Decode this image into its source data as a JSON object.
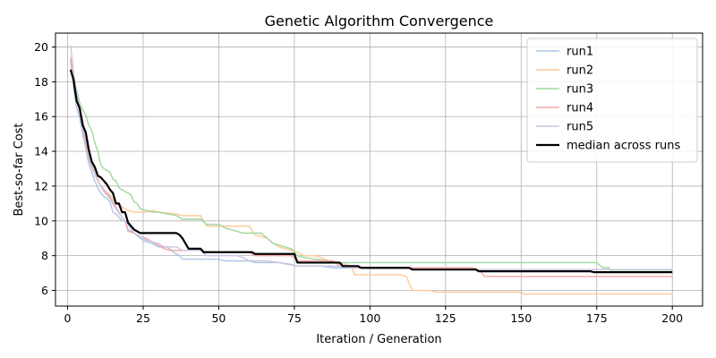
{
  "chart_data": {
    "type": "line",
    "title": "Genetic Algorithm Convergence",
    "xlabel": "Iteration / Generation",
    "ylabel": "Best-so-far Cost",
    "xlim": [
      -4,
      210
    ],
    "ylim": [
      5.1,
      20.8
    ],
    "xticks": [
      0,
      25,
      50,
      75,
      100,
      125,
      150,
      175,
      200
    ],
    "yticks": [
      6,
      8,
      10,
      12,
      14,
      16,
      18,
      20
    ],
    "grid": true,
    "legend_position": "top-right",
    "series": [
      {
        "name": "run1",
        "color": "#aac6e4",
        "width": 1.4,
        "points": [
          [
            1,
            19.4
          ],
          [
            2,
            17.6
          ],
          [
            3,
            16.5
          ],
          [
            4,
            15.9
          ],
          [
            5,
            15.0
          ],
          [
            6,
            14.2
          ],
          [
            7,
            13.3
          ],
          [
            8,
            12.8
          ],
          [
            9,
            12.3
          ],
          [
            10,
            11.9
          ],
          [
            11,
            11.6
          ],
          [
            12,
            11.4
          ],
          [
            13,
            11.3
          ],
          [
            14,
            11.1
          ],
          [
            15,
            10.5
          ],
          [
            16,
            10.4
          ],
          [
            17,
            10.2
          ],
          [
            18,
            10.0
          ],
          [
            19,
            10.0
          ],
          [
            20,
            9.5
          ],
          [
            22,
            9.3
          ],
          [
            24,
            9.0
          ],
          [
            26,
            8.8
          ],
          [
            28,
            8.7
          ],
          [
            30,
            8.5
          ],
          [
            33,
            8.5
          ],
          [
            35,
            8.2
          ],
          [
            37,
            8.0
          ],
          [
            38,
            7.8
          ],
          [
            45,
            7.8
          ],
          [
            50,
            7.8
          ],
          [
            52,
            7.7
          ],
          [
            60,
            7.7
          ],
          [
            62,
            7.6
          ],
          [
            70,
            7.6
          ],
          [
            73,
            7.5
          ],
          [
            76,
            7.4
          ],
          [
            80,
            7.4
          ],
          [
            84,
            7.4
          ],
          [
            88,
            7.3
          ],
          [
            96,
            7.3
          ],
          [
            112,
            7.3
          ],
          [
            115,
            7.2
          ],
          [
            150,
            7.2
          ],
          [
            200,
            7.2
          ]
        ]
      },
      {
        "name": "run2",
        "color": "#ffc896",
        "width": 1.4,
        "points": [
          [
            1,
            19.0
          ],
          [
            2,
            18.0
          ],
          [
            3,
            17.0
          ],
          [
            4,
            16.4
          ],
          [
            5,
            15.8
          ],
          [
            6,
            15.0
          ],
          [
            7,
            14.0
          ],
          [
            8,
            13.3
          ],
          [
            9,
            12.8
          ],
          [
            10,
            12.4
          ],
          [
            11,
            12.0
          ],
          [
            12,
            11.8
          ],
          [
            14,
            11.5
          ],
          [
            16,
            11.0
          ],
          [
            18,
            10.8
          ],
          [
            20,
            10.6
          ],
          [
            22,
            10.5
          ],
          [
            25,
            10.5
          ],
          [
            28,
            10.6
          ],
          [
            30,
            10.5
          ],
          [
            36,
            10.4
          ],
          [
            38,
            10.3
          ],
          [
            44,
            10.3
          ],
          [
            46,
            9.7
          ],
          [
            52,
            9.7
          ],
          [
            60,
            9.7
          ],
          [
            62,
            9.2
          ],
          [
            66,
            9.0
          ],
          [
            68,
            8.7
          ],
          [
            70,
            8.5
          ],
          [
            74,
            8.3
          ],
          [
            76,
            8.2
          ],
          [
            78,
            8.0
          ],
          [
            82,
            8.0
          ],
          [
            85,
            7.8
          ],
          [
            88,
            7.6
          ],
          [
            92,
            7.5
          ],
          [
            94,
            7.3
          ],
          [
            95,
            6.9
          ],
          [
            110,
            6.9
          ],
          [
            112,
            6.8
          ],
          [
            113,
            6.4
          ],
          [
            114,
            6.0
          ],
          [
            120,
            6.0
          ],
          [
            122,
            5.9
          ],
          [
            150,
            5.9
          ],
          [
            151,
            5.8
          ],
          [
            200,
            5.8
          ]
        ]
      },
      {
        "name": "run3",
        "color": "#9fd79f",
        "width": 1.4,
        "points": [
          [
            1,
            19.2
          ],
          [
            2,
            18.0
          ],
          [
            3,
            17.5
          ],
          [
            4,
            16.8
          ],
          [
            5,
            16.4
          ],
          [
            6,
            16.1
          ],
          [
            7,
            15.5
          ],
          [
            8,
            15.2
          ],
          [
            9,
            14.5
          ],
          [
            10,
            14.0
          ],
          [
            11,
            13.2
          ],
          [
            12,
            13.0
          ],
          [
            13,
            12.9
          ],
          [
            14,
            12.8
          ],
          [
            15,
            12.4
          ],
          [
            16,
            12.3
          ],
          [
            17,
            11.9
          ],
          [
            18,
            11.8
          ],
          [
            20,
            11.6
          ],
          [
            21,
            11.5
          ],
          [
            22,
            11.1
          ],
          [
            23,
            11.0
          ],
          [
            24,
            10.7
          ],
          [
            26,
            10.6
          ],
          [
            28,
            10.5
          ],
          [
            30,
            10.5
          ],
          [
            36,
            10.3
          ],
          [
            38,
            10.1
          ],
          [
            44,
            10.1
          ],
          [
            46,
            9.8
          ],
          [
            50,
            9.8
          ],
          [
            52,
            9.6
          ],
          [
            56,
            9.4
          ],
          [
            58,
            9.3
          ],
          [
            64,
            9.3
          ],
          [
            66,
            9.0
          ],
          [
            68,
            8.7
          ],
          [
            70,
            8.6
          ],
          [
            72,
            8.5
          ],
          [
            74,
            8.4
          ],
          [
            76,
            8.0
          ],
          [
            78,
            7.9
          ],
          [
            82,
            7.8
          ],
          [
            86,
            7.7
          ],
          [
            88,
            7.6
          ],
          [
            175,
            7.6
          ],
          [
            177,
            7.3
          ],
          [
            179,
            7.3
          ],
          [
            180,
            7.1
          ],
          [
            200,
            7.1
          ]
        ]
      },
      {
        "name": "run4",
        "color": "#f4a6a6",
        "width": 1.4,
        "points": [
          [
            1,
            19.3
          ],
          [
            2,
            17.8
          ],
          [
            3,
            17.0
          ],
          [
            4,
            16.2
          ],
          [
            5,
            15.4
          ],
          [
            6,
            14.5
          ],
          [
            7,
            13.6
          ],
          [
            8,
            13.1
          ],
          [
            9,
            12.7
          ],
          [
            10,
            12.3
          ],
          [
            12,
            11.7
          ],
          [
            14,
            11.3
          ],
          [
            16,
            10.7
          ],
          [
            18,
            10.2
          ],
          [
            19,
            10.0
          ],
          [
            20,
            9.4
          ],
          [
            22,
            9.3
          ],
          [
            24,
            9.1
          ],
          [
            26,
            9.0
          ],
          [
            28,
            8.8
          ],
          [
            30,
            8.6
          ],
          [
            32,
            8.4
          ],
          [
            34,
            8.3
          ],
          [
            44,
            8.3
          ],
          [
            46,
            8.2
          ],
          [
            58,
            8.2
          ],
          [
            60,
            8.2
          ],
          [
            62,
            8.0
          ],
          [
            74,
            8.0
          ],
          [
            76,
            7.7
          ],
          [
            88,
            7.7
          ],
          [
            90,
            7.4
          ],
          [
            96,
            7.4
          ],
          [
            98,
            7.3
          ],
          [
            134,
            7.3
          ],
          [
            136,
            7.2
          ],
          [
            137,
            7.0
          ],
          [
            138,
            6.8
          ],
          [
            200,
            6.8
          ]
        ]
      },
      {
        "name": "run5",
        "color": "#cbc3e3",
        "width": 1.4,
        "points": [
          [
            1,
            20.1
          ],
          [
            2,
            18.5
          ],
          [
            3,
            17.3
          ],
          [
            4,
            16.5
          ],
          [
            5,
            15.7
          ],
          [
            6,
            14.8
          ],
          [
            7,
            13.8
          ],
          [
            8,
            13.2
          ],
          [
            9,
            12.7
          ],
          [
            10,
            12.3
          ],
          [
            12,
            11.8
          ],
          [
            14,
            11.4
          ],
          [
            16,
            10.8
          ],
          [
            18,
            10.2
          ],
          [
            20,
            9.8
          ],
          [
            22,
            9.3
          ],
          [
            24,
            9.1
          ],
          [
            26,
            8.9
          ],
          [
            28,
            8.8
          ],
          [
            30,
            8.7
          ],
          [
            32,
            8.5
          ],
          [
            36,
            8.5
          ],
          [
            38,
            8.3
          ],
          [
            44,
            8.3
          ],
          [
            46,
            8.0
          ],
          [
            56,
            8.0
          ],
          [
            58,
            7.9
          ],
          [
            60,
            7.7
          ],
          [
            66,
            7.7
          ],
          [
            70,
            7.6
          ],
          [
            74,
            7.5
          ],
          [
            76,
            7.4
          ],
          [
            90,
            7.4
          ],
          [
            94,
            7.3
          ],
          [
            112,
            7.3
          ],
          [
            115,
            7.2
          ],
          [
            140,
            7.2
          ],
          [
            200,
            7.2
          ]
        ]
      },
      {
        "name": "median across runs",
        "color": "#000000",
        "width": 2.2,
        "points": [
          [
            1,
            18.7
          ],
          [
            2,
            18.1
          ],
          [
            3,
            16.9
          ],
          [
            4,
            16.5
          ],
          [
            5,
            15.5
          ],
          [
            6,
            15.1
          ],
          [
            7,
            14.1
          ],
          [
            8,
            13.4
          ],
          [
            9,
            13.1
          ],
          [
            10,
            12.6
          ],
          [
            11,
            12.5
          ],
          [
            12,
            12.3
          ],
          [
            13,
            12.1
          ],
          [
            14,
            11.8
          ],
          [
            15,
            11.6
          ],
          [
            16,
            11.0
          ],
          [
            17,
            11.0
          ],
          [
            18,
            10.5
          ],
          [
            19,
            10.5
          ],
          [
            20,
            9.9
          ],
          [
            21,
            9.7
          ],
          [
            22,
            9.5
          ],
          [
            23,
            9.4
          ],
          [
            24,
            9.3
          ],
          [
            36,
            9.3
          ],
          [
            37,
            9.2
          ],
          [
            38,
            9.0
          ],
          [
            39,
            8.7
          ],
          [
            40,
            8.4
          ],
          [
            44,
            8.4
          ],
          [
            45,
            8.2
          ],
          [
            61,
            8.2
          ],
          [
            62,
            8.1
          ],
          [
            75,
            8.1
          ],
          [
            76,
            7.6
          ],
          [
            90,
            7.6
          ],
          [
            91,
            7.4
          ],
          [
            96,
            7.4
          ],
          [
            97,
            7.3
          ],
          [
            113,
            7.3
          ],
          [
            114,
            7.2
          ],
          [
            135,
            7.2
          ],
          [
            136,
            7.1
          ],
          [
            173,
            7.1
          ],
          [
            174,
            7.05
          ],
          [
            200,
            7.05
          ]
        ]
      }
    ]
  }
}
